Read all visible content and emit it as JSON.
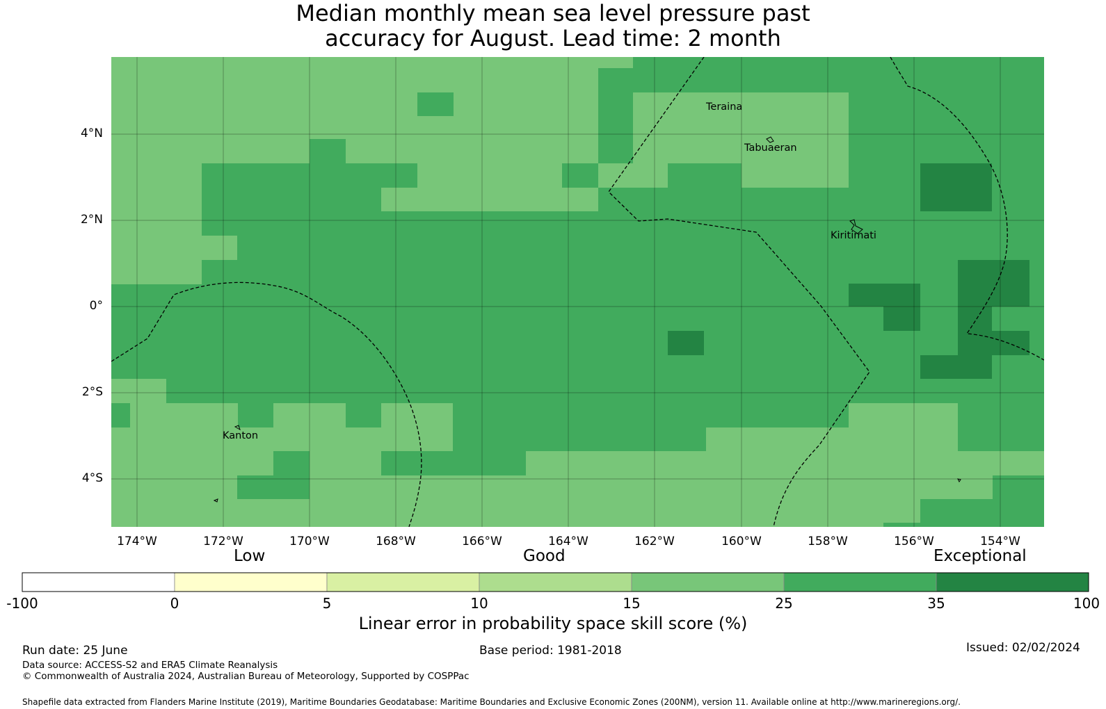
{
  "title": {
    "line1": "Median monthly mean sea level pressure past",
    "line2": "accuracy for August. Lead time: 2 month"
  },
  "map": {
    "lat_labels": [
      "4°N",
      "2°N",
      "0°",
      "2°S",
      "4°S"
    ],
    "lon_labels": [
      "174°W",
      "172°W",
      "170°W",
      "168°W",
      "166°W",
      "164°W",
      "162°W",
      "160°W",
      "158°W",
      "156°W",
      "154°W"
    ],
    "places": {
      "teraina": "Teraina",
      "tabuaeran": "Tabuaeran",
      "kiritimati": "Kiritimati",
      "kanton": "Kanton"
    }
  },
  "colorbar": {
    "categories": {
      "low": "Low",
      "good": "Good",
      "exceptional": "Exceptional"
    },
    "ticks": [
      "-100",
      "0",
      "5",
      "10",
      "15",
      "25",
      "35",
      "100"
    ],
    "colors": [
      "#ffffff",
      "#ffffcc",
      "#d9f0a3",
      "#addd8e",
      "#78c679",
      "#41ab5d",
      "#238443"
    ],
    "title": "Linear error in probability space skill score (%)"
  },
  "footer": {
    "run_date": "Run date: 25 June",
    "base_period": "Base period: 1981-2018",
    "issued": "Issued: 02/02/2024",
    "data_source": "Data source: ACCESS-S2 and ERA5 Climate Reanalysis",
    "copyright": "© Commonwealth of Australia 2024, Australian Bureau of Meteorology, Supported by COSPPac",
    "shapefile": "Shapefile data extracted from Flanders Marine Institute (2019), Maritime Boundaries Geodatabase: Maritime Boundaries and Exclusive Economic Zones (200NM), version 11. Available online at http://www.marineregions.org/."
  }
}
